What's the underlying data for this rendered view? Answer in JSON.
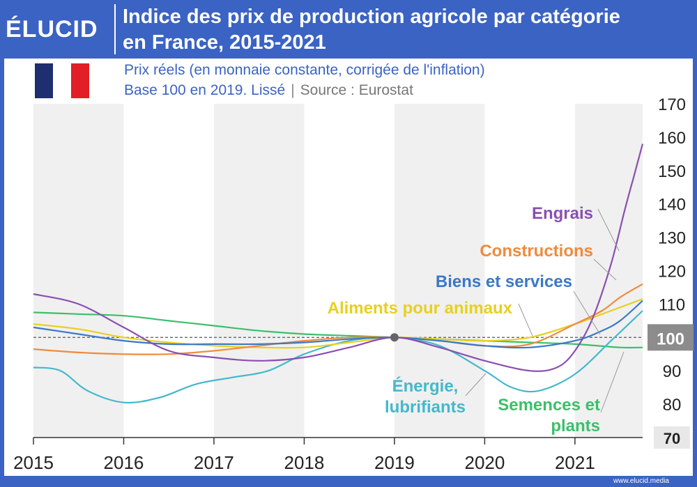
{
  "logo": "ÉLUCID",
  "header": {
    "title_line1": "Indice des prix de production agricole par catégorie",
    "title_line2": "en France, 2015-2021"
  },
  "subtitle": {
    "line1": "Prix réels (en monnaie constante, corrigée de l'inflation)",
    "line2_part1": "Base 100 en 2019. Lissé",
    "line2_sep": "|",
    "line2_part2": "Source : Eurostat"
  },
  "footer": {
    "website": "www.elucid.media"
  },
  "flag_colors": [
    "#1f2e6e",
    "#ffffff",
    "#e21f26"
  ],
  "colors": {
    "brand_blue": "#3b63c4",
    "band_grey": "#f0f0f0",
    "engrais": "#8a4fb0",
    "constructions": "#f08a3c",
    "biens": "#3a78c8",
    "aliments": "#e8d020",
    "energie": "#44b8cc",
    "semences": "#3cbf6a"
  },
  "chart_data": {
    "type": "line",
    "xlim": [
      2015,
      2021.75
    ],
    "ylim": [
      70,
      170
    ],
    "x_ticks": [
      "2015",
      "2016",
      "2017",
      "2018",
      "2019",
      "2020",
      "2021"
    ],
    "y_ticks": [
      "170",
      "160",
      "150",
      "140",
      "130",
      "120",
      "110",
      "100",
      "90",
      "80",
      "70"
    ],
    "reference_value": 100,
    "reference_label": "100",
    "highlight_point": {
      "x": 2019,
      "y": 100
    },
    "series": [
      {
        "name": "Engrais",
        "color_key": "engrais",
        "x": [
          2015,
          2015.5,
          2016,
          2016.5,
          2017,
          2017.5,
          2018,
          2018.5,
          2019,
          2019.5,
          2020,
          2020.5,
          2020.8,
          2021,
          2021.2,
          2021.4,
          2021.55,
          2021.65,
          2021.75
        ],
        "y": [
          113,
          110,
          103,
          96,
          94,
          93,
          94,
          97,
          100,
          97,
          93,
          90,
          91,
          96,
          106,
          122,
          138,
          148,
          158
        ]
      },
      {
        "name": "Constructions",
        "color_key": "constructions",
        "x": [
          2015,
          2015.5,
          2016,
          2016.5,
          2017,
          2017.5,
          2018,
          2018.5,
          2019,
          2019.5,
          2020,
          2020.5,
          2021,
          2021.3,
          2021.5,
          2021.75
        ],
        "y": [
          96.5,
          95.5,
          95,
          95,
          96,
          97.5,
          99,
          100,
          100,
          99,
          97.5,
          98,
          104,
          108,
          112,
          116
        ]
      },
      {
        "name": "Biens et services",
        "color_key": "biens",
        "x": [
          2015,
          2015.5,
          2016,
          2016.5,
          2017,
          2017.5,
          2018,
          2018.5,
          2019,
          2019.5,
          2020,
          2020.5,
          2021,
          2021.3,
          2021.5,
          2021.75
        ],
        "y": [
          103,
          101,
          99,
          98,
          98,
          98,
          98.5,
          99.5,
          100,
          99,
          97.5,
          97,
          99,
          102,
          105,
          111
        ]
      },
      {
        "name": "Aliments pour animaux",
        "color_key": "aliments",
        "x": [
          2015,
          2015.5,
          2016,
          2016.5,
          2017,
          2017.5,
          2018,
          2018.5,
          2019,
          2019.5,
          2020,
          2020.5,
          2021,
          2021.3,
          2021.5,
          2021.75
        ],
        "y": [
          104,
          102.5,
          100,
          98.5,
          97.5,
          97,
          97,
          98.5,
          100,
          99.5,
          99,
          100,
          104,
          107,
          109,
          111.5
        ]
      },
      {
        "name": "Énergie, lubrifiants",
        "color_key": "energie",
        "x": [
          2015,
          2015.3,
          2015.6,
          2016,
          2016.4,
          2016.8,
          2017.2,
          2017.6,
          2018,
          2018.5,
          2019,
          2019.5,
          2020,
          2020.3,
          2020.6,
          2021,
          2021.4,
          2021.75
        ],
        "y": [
          91,
          90,
          84,
          80.5,
          82,
          86,
          88,
          90,
          95,
          99,
          100,
          97.5,
          90,
          85,
          84,
          89,
          99,
          108
        ]
      },
      {
        "name": "Semences et plants",
        "color_key": "semences",
        "x": [
          2015,
          2015.5,
          2016,
          2016.5,
          2017,
          2017.5,
          2018,
          2018.5,
          2019,
          2019.5,
          2020,
          2020.5,
          2021,
          2021.5,
          2021.75
        ],
        "y": [
          107.5,
          107,
          106.5,
          105,
          103.5,
          102,
          101,
          100.5,
          100,
          99.5,
          99,
          98.5,
          98,
          97,
          97
        ]
      }
    ],
    "labels": [
      {
        "text": [
          "Engrais"
        ],
        "color_key": "engrais",
        "anchor": "end"
      },
      {
        "text": [
          "Constructions"
        ],
        "color_key": "constructions",
        "anchor": "end"
      },
      {
        "text": [
          "Biens et services"
        ],
        "color_key": "biens",
        "anchor": "end"
      },
      {
        "text": [
          "Aliments pour animaux"
        ],
        "color_key": "aliments",
        "anchor": "end"
      },
      {
        "text": [
          "Énergie,",
          "lubrifiants"
        ],
        "color_key": "energie",
        "anchor": "middle"
      },
      {
        "text": [
          "Semences et",
          "plants"
        ],
        "color_key": "semences",
        "anchor": "end"
      }
    ]
  }
}
